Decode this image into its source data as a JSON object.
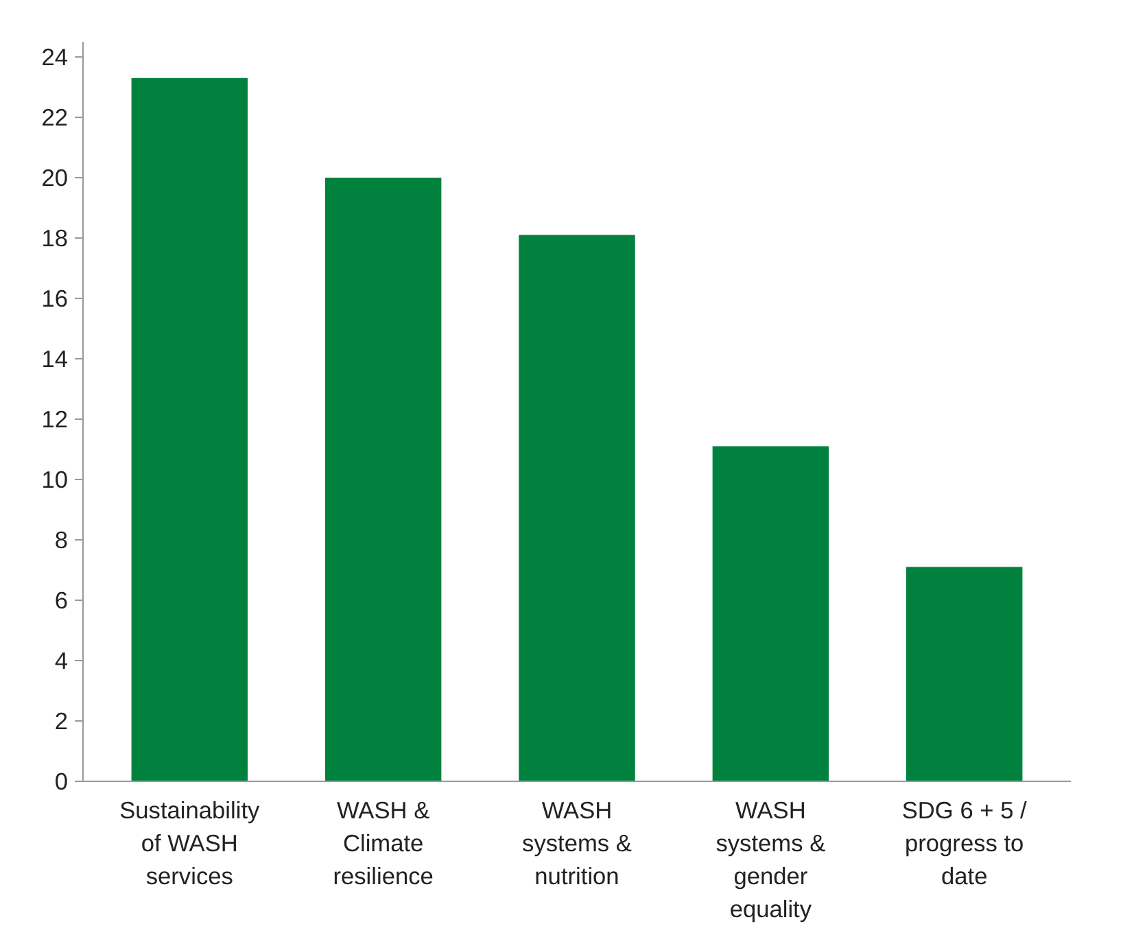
{
  "chart_data": {
    "type": "bar",
    "categories": [
      "Sustainability of WASH services",
      "WASH & Climate resilience",
      "WASH systems & nutrition",
      "WASH systems & gender equality",
      "SDG 6 + 5 / progress to date"
    ],
    "values": [
      23.3,
      20.0,
      18.1,
      11.1,
      7.1
    ],
    "color": "#00823e",
    "ylim": [
      0,
      24.5
    ],
    "yticks": [
      0,
      2,
      4,
      6,
      8,
      10,
      12,
      14,
      16,
      18,
      20,
      22,
      24
    ],
    "grid": false
  }
}
